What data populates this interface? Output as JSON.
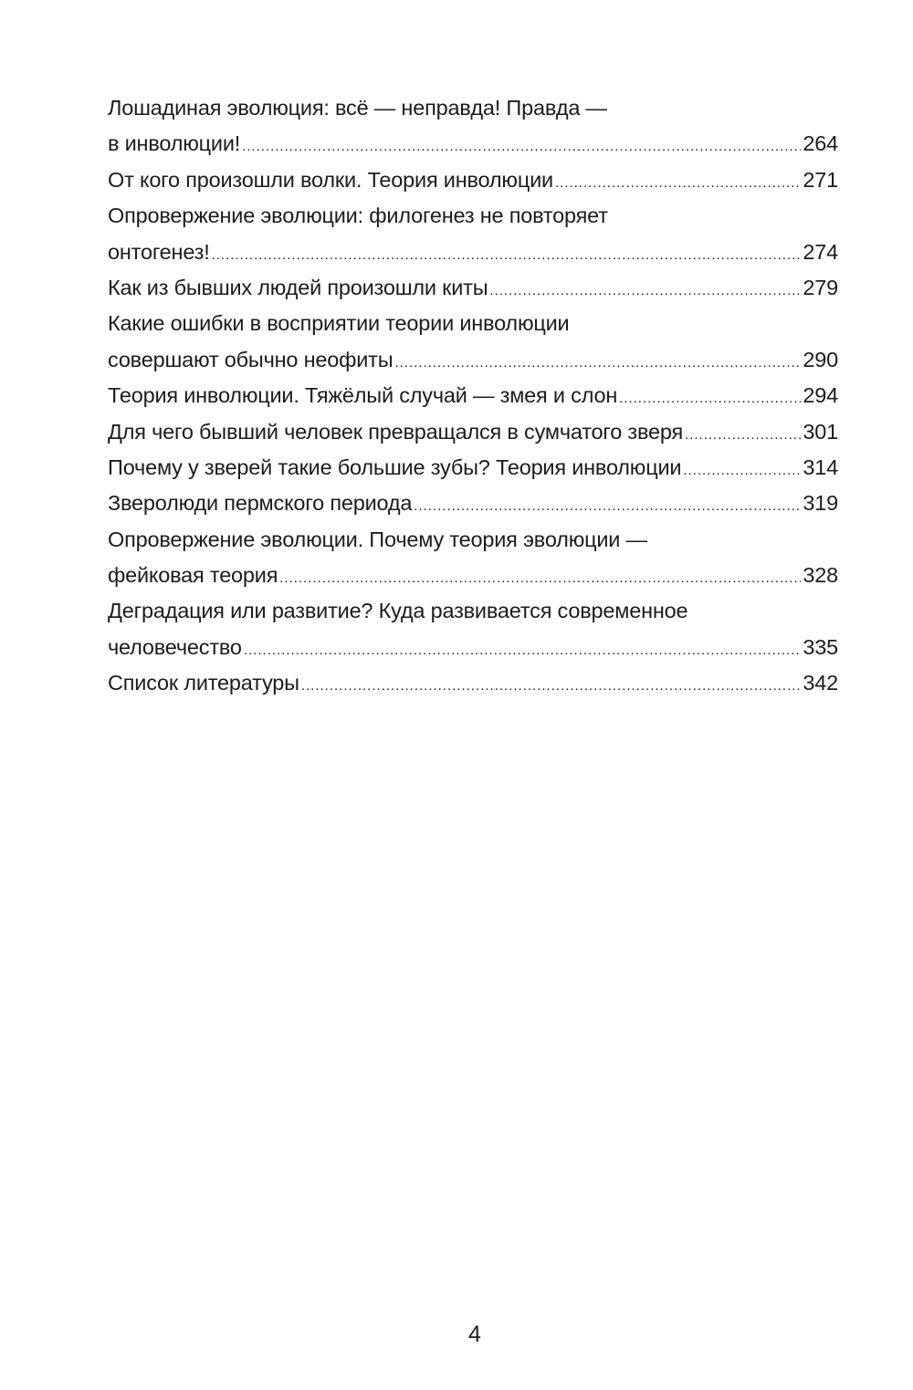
{
  "toc": {
    "entries": [
      {
        "lines": [
          "Лошадиная эволюция: всё — неправда! Правда —",
          "в инволюции!"
        ],
        "page": "264"
      },
      {
        "lines": [
          "От кого произошли волки. Теория инволюции"
        ],
        "page": "271"
      },
      {
        "lines": [
          "Опровержение эволюции: филогенез не повторяет",
          "онтогенез!"
        ],
        "page": "274"
      },
      {
        "lines": [
          "Как из бывших людей произошли киты"
        ],
        "page": "279"
      },
      {
        "lines": [
          "Какие ошибки в восприятии теории инволюции",
          "совершают обычно неофиты"
        ],
        "page": "290"
      },
      {
        "lines": [
          "Теория инволюции. Тяжёлый случай — змея и слон"
        ],
        "page": "294"
      },
      {
        "lines": [
          "Для чего бывший человек превращался в сумчатого зверя"
        ],
        "page": "301"
      },
      {
        "lines": [
          "Почему у зверей такие большие зубы? Теория инволюции"
        ],
        "page": "314"
      },
      {
        "lines": [
          "Зверолюди пермского периода"
        ],
        "page": "319"
      },
      {
        "lines": [
          "Опровержение эволюции. Почему теория эволюции —",
          "фейковая теория"
        ],
        "page": "328"
      },
      {
        "lines": [
          "Деградация или развитие? Куда развивается современное",
          "человечество"
        ],
        "page": "335"
      },
      {
        "lines": [
          "Список литературы"
        ],
        "page": "342"
      }
    ]
  },
  "page_number": "4"
}
